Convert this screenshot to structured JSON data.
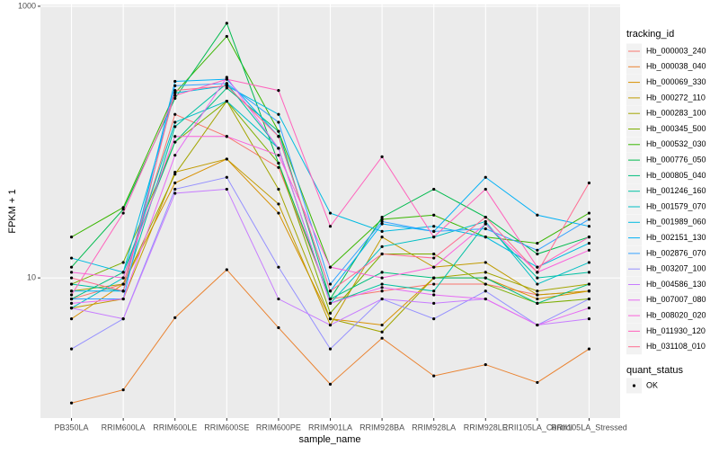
{
  "chart_data": {
    "type": "line",
    "x_label": "sample_name",
    "y_label": "FPKM + 1",
    "categories": [
      "PB350LA",
      "RRIM600LA",
      "RRIM600LE",
      "RRIM600SE",
      "RRIM600PE",
      "RRIM901LA",
      "RRIM928BA",
      "RRIM928LA",
      "RRIM928LE",
      "RRII105LA_Control",
      "RRII105LA_Stressed"
    ],
    "log_y": true,
    "ylim": [
      0.93,
      1030
    ],
    "yticks": [
      10,
      1000
    ],
    "grid": true,
    "legend_position": "right",
    "legend_title": "tracking_id",
    "shape_legend": {
      "title": "quant_status",
      "labels": [
        "OK"
      ]
    },
    "series": [
      {
        "name": "Hb_000003_240",
        "color": "#F8766D",
        "values": [
          7,
          9,
          160,
          110,
          65,
          7,
          8,
          9,
          9,
          7.5,
          8
        ]
      },
      {
        "name": "Hb_000038_040",
        "color": "#EA8331",
        "values": [
          1.2,
          1.5,
          5.1,
          11.5,
          4.3,
          1.65,
          3.6,
          1.9,
          2.3,
          1.7,
          3.0
        ]
      },
      {
        "name": "Hb_000069_330",
        "color": "#D89000",
        "values": [
          5,
          9,
          50,
          75,
          30,
          5,
          4.5,
          10,
          10,
          7,
          8
        ]
      },
      {
        "name": "Hb_000272_110",
        "color": "#C09B00",
        "values": [
          6,
          7,
          60,
          75,
          35,
          4.5,
          20,
          12,
          13,
          7.5,
          8
        ]
      },
      {
        "name": "Hb_000283_100",
        "color": "#A3A500",
        "values": [
          8,
          9,
          58,
          200,
          45,
          5,
          4,
          10,
          11,
          8,
          9
        ]
      },
      {
        "name": "Hb_000345_500",
        "color": "#7CAE00",
        "values": [
          9,
          13,
          100,
          200,
          70,
          5.5,
          15,
          15,
          9,
          6.5,
          7
        ]
      },
      {
        "name": "Hb_000532_030",
        "color": "#39B600",
        "values": [
          20,
          33,
          230,
          600,
          120,
          12,
          27,
          29,
          20,
          18,
          30
        ]
      },
      {
        "name": "Hb_000776_050",
        "color": "#00BB4E",
        "values": [
          12,
          32,
          210,
          750,
          70,
          7,
          28,
          45,
          28,
          15,
          20
        ]
      },
      {
        "name": "Hb_000805_040",
        "color": "#00BF7D",
        "values": [
          7,
          11,
          100,
          250,
          120,
          7,
          11,
          10,
          10,
          6.5,
          9
        ]
      },
      {
        "name": "Hb_001246_160",
        "color": "#00C1A3",
        "values": [
          9,
          8,
          130,
          270,
          90,
          6.5,
          9,
          8,
          25,
          10,
          11
        ]
      },
      {
        "name": "Hb_001579_070",
        "color": "#00BFC4",
        "values": [
          6,
          10,
          140,
          200,
          90,
          6.5,
          17,
          20,
          26,
          9,
          13
        ]
      },
      {
        "name": "Hb_001989_060",
        "color": "#00BAE0",
        "values": [
          14,
          11,
          230,
          260,
          160,
          30,
          22,
          24,
          20,
          12,
          18
        ]
      },
      {
        "name": "Hb_002151_130",
        "color": "#00B0F6",
        "values": [
          8,
          8,
          280,
          290,
          110,
          8,
          25,
          22,
          55,
          29,
          24
        ]
      },
      {
        "name": "Hb_002876_070",
        "color": "#35A2FF",
        "values": [
          7,
          7,
          260,
          270,
          140,
          9,
          26,
          22,
          23,
          16,
          27
        ]
      },
      {
        "name": "Hb_003207_100",
        "color": "#9590FF",
        "values": [
          3,
          5,
          45,
          55,
          12,
          3,
          7,
          5,
          8,
          4.5,
          7
        ]
      },
      {
        "name": "Hb_004586_130",
        "color": "#C77CFF",
        "values": [
          6,
          5,
          42,
          45,
          7,
          4.5,
          7,
          6.5,
          7,
          4.5,
          5
        ]
      },
      {
        "name": "Hb_007007_080",
        "color": "#E76BF3",
        "values": [
          6.5,
          7,
          80,
          300,
          90,
          6.5,
          8.5,
          7.5,
          7,
          4.5,
          6
        ]
      },
      {
        "name": "Hb_008020_020",
        "color": "#FA62DB",
        "values": [
          11,
          10,
          110,
          110,
          80,
          12,
          10,
          12,
          25,
          11,
          16
        ]
      },
      {
        "name": "Hb_011930_120",
        "color": "#FF62BC",
        "values": [
          7.5,
          30,
          220,
          290,
          240,
          24,
          78,
          20,
          45,
          12,
          20
        ]
      },
      {
        "name": "Hb_031108_010",
        "color": "#FF6C91",
        "values": [
          10,
          8,
          240,
          260,
          110,
          8,
          15,
          14,
          28,
          11,
          50
        ]
      }
    ]
  }
}
